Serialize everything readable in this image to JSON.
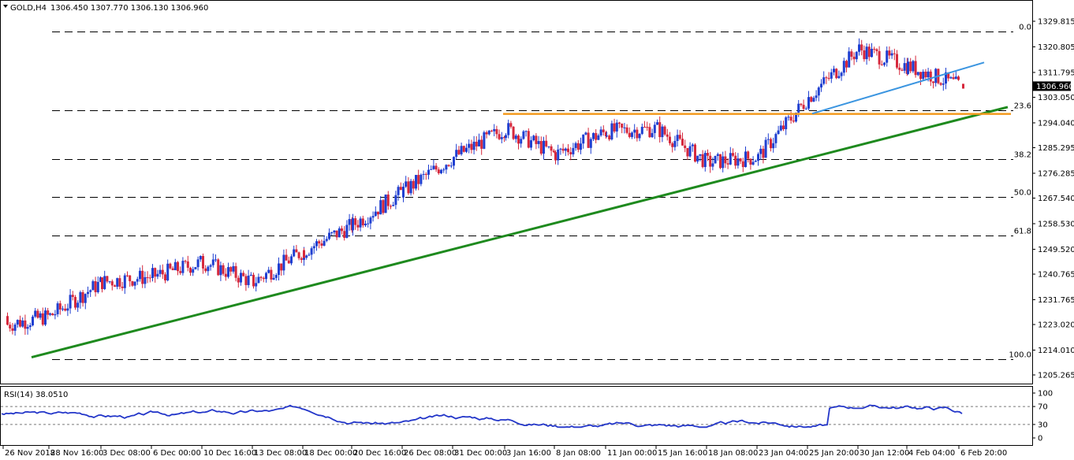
{
  "header": {
    "symbol": "GOLD,H4",
    "ohlc": "1306.450 1307.770 1306.130 1306.960"
  },
  "price_axis": {
    "ticks": [
      "1329.815",
      "1320.805",
      "1311.795",
      "1303.050",
      "1294.040",
      "1285.295",
      "1276.285",
      "1267.540",
      "1258.530",
      "1249.520",
      "1240.765",
      "1231.765",
      "1223.020",
      "1214.010",
      "1205.265"
    ],
    "current_price": "1306.960"
  },
  "fib_levels": [
    {
      "label": "0.0",
      "price": 1326.1
    },
    {
      "label": "23.6",
      "price": 1298.6
    },
    {
      "label": "38.2",
      "price": 1281.2
    },
    {
      "label": "50.0",
      "price": 1267.9
    },
    {
      "label": "61.8",
      "price": 1254.5
    },
    {
      "label": "100.0",
      "price": 1210.8
    }
  ],
  "rsi": {
    "label": "RSI(14) 38.0510",
    "ticks": [
      "100",
      "70",
      "30",
      "0"
    ],
    "levels": [
      70,
      30
    ]
  },
  "time_axis": {
    "labels": [
      "26 Nov 2018",
      "28 Nov 16:00",
      "3 Dec 08:00",
      "6 Dec 00:00",
      "10 Dec 16:00",
      "13 Dec 08:00",
      "18 Dec 00:00",
      "20 Dec 16:00",
      "26 Dec 08:00",
      "31 Dec 00:00",
      "3 Jan 16:00",
      "8 Jan 08:00",
      "11 Jan 00:00",
      "15 Jan 16:00",
      "18 Jan 08:00",
      "23 Jan 04:00",
      "25 Jan 20:00",
      "30 Jan 12:00",
      "4 Feb 04:00",
      "6 Feb 20:00"
    ]
  },
  "colors": {
    "bull": "#1f3fd1",
    "bear": "#d6283c",
    "support_trendline": "#1e8a1e",
    "resistance_line": "#f39a1e",
    "short_trendline": "#3b95e0",
    "rsi_line": "#2336c9"
  },
  "chart_data": {
    "type": "candlestick",
    "title": "GOLD,H4",
    "price_range": [
      1205.265,
      1329.815
    ],
    "series_closes": [
      {
        "x": "26 Nov 2018",
        "y": 1223
      },
      {
        "x": "28 Nov 16:00",
        "y": 1226
      },
      {
        "x": "3 Dec 08:00",
        "y": 1238
      },
      {
        "x": "6 Dec 00:00",
        "y": 1240
      },
      {
        "x": "10 Dec 16:00",
        "y": 1245
      },
      {
        "x": "13 Dec 08:00",
        "y": 1238
      },
      {
        "x": "18 Dec 00:00",
        "y": 1249
      },
      {
        "x": "20 Dec 16:00",
        "y": 1258
      },
      {
        "x": "26 Dec 08:00",
        "y": 1270
      },
      {
        "x": "31 Dec 00:00",
        "y": 1282
      },
      {
        "x": "3 Jan 16:00",
        "y": 1292
      },
      {
        "x": "8 Jan 08:00",
        "y": 1283
      },
      {
        "x": "11 Jan 00:00",
        "y": 1291
      },
      {
        "x": "15 Jan 16:00",
        "y": 1292
      },
      {
        "x": "18 Jan 08:00",
        "y": 1280
      },
      {
        "x": "23 Jan 04:00",
        "y": 1282
      },
      {
        "x": "25 Jan 20:00",
        "y": 1303
      },
      {
        "x": "30 Jan 12:00",
        "y": 1320
      },
      {
        "x": "4 Feb 04:00",
        "y": 1314
      },
      {
        "x": "6 Feb 20:00",
        "y": 1306.96
      }
    ]
  }
}
